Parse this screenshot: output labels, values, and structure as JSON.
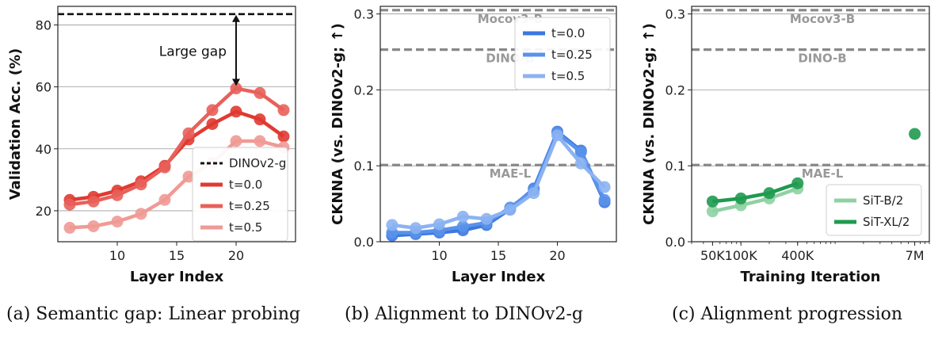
{
  "panels": [
    {
      "caption": "(a) Semantic gap: Linear probing",
      "chart_data": {
        "type": "line",
        "xlabel": "Layer Index",
        "ylabel": "Validation Acc. (%)",
        "xlim": [
          5,
          25
        ],
        "ylim": [
          10,
          86
        ],
        "xticks": [
          10,
          15,
          20
        ],
        "yticks": [
          20,
          40,
          60,
          80
        ],
        "x": [
          6,
          8,
          10,
          12,
          14,
          16,
          18,
          20,
          22,
          24
        ],
        "series": [
          {
            "name": "t=0.0",
            "color": "#e03a31",
            "values": [
              23.5,
              24.5,
              26.5,
              29.5,
              34.5,
              43.0,
              48.0,
              52.0,
              49.5,
              44.0
            ]
          },
          {
            "name": "t=0.25",
            "color": "#e8605a",
            "values": [
              22.0,
              23.0,
              25.0,
              28.5,
              34.0,
              45.0,
              52.5,
              59.5,
              58.0,
              52.5
            ]
          },
          {
            "name": "t=0.5",
            "color": "#f09a95",
            "values": [
              14.5,
              15.0,
              16.5,
              19.0,
              23.5,
              31.0,
              35.5,
              42.5,
              42.5,
              40.5
            ]
          }
        ],
        "reference_lines": [
          {
            "name": "DINOv2-g",
            "value": 83.5,
            "style": "dashed-black"
          }
        ],
        "annotation": "Large gap",
        "grid": "horizontal",
        "legend": "lower-right"
      }
    },
    {
      "caption": "(b) Alignment to DINOv2-g",
      "chart_data": {
        "type": "line",
        "xlabel": "Layer Index",
        "ylabel": "CKNNA (vs. DINOv2-g; ↑)",
        "xlim": [
          5,
          25
        ],
        "ylim": [
          0,
          0.31
        ],
        "xticks": [
          10,
          15,
          20
        ],
        "yticks": [
          "0.0",
          "0.1",
          "0.2",
          "0.3"
        ],
        "ytick_values": [
          0,
          0.1,
          0.2,
          0.3
        ],
        "x": [
          6,
          8,
          10,
          12,
          14,
          16,
          18,
          20,
          22,
          24
        ],
        "series": [
          {
            "name": "t=0.0",
            "color": "#3a78e0",
            "values": [
              0.008,
              0.01,
              0.012,
              0.015,
              0.022,
              0.043,
              0.07,
              0.145,
              0.12,
              0.052
            ]
          },
          {
            "name": "t=0.25",
            "color": "#5a92ea",
            "values": [
              0.012,
              0.012,
              0.015,
              0.02,
              0.025,
              0.045,
              0.068,
              0.143,
              0.118,
              0.055
            ]
          },
          {
            "name": "t=0.5",
            "color": "#8bb3f2",
            "values": [
              0.022,
              0.018,
              0.023,
              0.033,
              0.03,
              0.042,
              0.064,
              0.14,
              0.103,
              0.072
            ]
          }
        ],
        "reference_lines": [
          {
            "name": "Mocov3-B",
            "value": 0.305
          },
          {
            "name": "DINO-B",
            "value": 0.253
          },
          {
            "name": "MAE-L",
            "value": 0.101
          }
        ],
        "grid": "horizontal",
        "legend": "top-right"
      }
    },
    {
      "caption": "(c) Alignment progression",
      "chart_data": {
        "type": "line",
        "xlabel": "Training Iteration",
        "ylabel": "CKNNA (vs. DINOv2-g; ↑)",
        "xscale": "log",
        "xlim": [
          30000,
          10000000
        ],
        "ylim": [
          0,
          0.31
        ],
        "xticks": [
          "50K",
          "100K",
          "400K",
          "7M"
        ],
        "xtick_values": [
          50000,
          100000,
          400000,
          7000000
        ],
        "yticks": [
          "0.0",
          "0.1",
          "0.2",
          "0.3"
        ],
        "ytick_values": [
          0,
          0.1,
          0.2,
          0.3
        ],
        "series": [
          {
            "name": "SiT-B/2",
            "color": "#8fd1a4",
            "x": [
              50000,
              100000,
              200000,
              400000
            ],
            "values": [
              0.04,
              0.048,
              0.057,
              0.07
            ]
          },
          {
            "name": "SiT-XL/2",
            "color": "#1f9a4f",
            "x": [
              50000,
              100000,
              200000,
              400000
            ],
            "values": [
              0.053,
              0.057,
              0.064,
              0.077
            ]
          },
          {
            "name": "",
            "color": "#1f9a4f",
            "x": [
              7000000
            ],
            "values": [
              0.142
            ],
            "markers_only": true
          }
        ],
        "reference_lines": [
          {
            "name": "Mocov3-B",
            "value": 0.305
          },
          {
            "name": "DINO-B",
            "value": 0.253
          },
          {
            "name": "MAE-L",
            "value": 0.101
          }
        ],
        "grid": "horizontal",
        "legend": "lower-right"
      }
    }
  ]
}
